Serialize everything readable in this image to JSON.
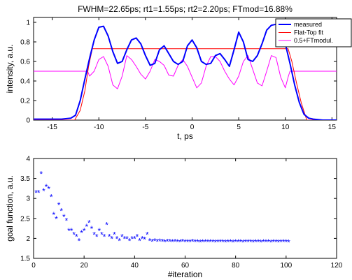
{
  "chart_data": [
    {
      "type": "line",
      "title": "FWHM=22.65ps; rt1=1.55ps; rt2=2.20ps; FTmod=16.88%",
      "xlabel": "t, ps",
      "ylabel": "intensity, a.u.",
      "xlim": [
        -17,
        15.5
      ],
      "ylim": [
        0,
        1.05
      ],
      "xticks": [
        -15,
        -10,
        -5,
        0,
        5,
        10,
        15
      ],
      "yticks": [
        0,
        0.2,
        0.4,
        0.6,
        0.8,
        1
      ],
      "xtick_labels": [
        "-15",
        "-10",
        "-5",
        "0",
        "5",
        "10",
        "15"
      ],
      "ytick_labels": [
        "0",
        "0.2",
        "0.4",
        "0.6",
        "0.8",
        "1"
      ],
      "legend_position": "top-right",
      "grid": false,
      "series": [
        {
          "name": "measured",
          "color": "#0000ff",
          "x": [
            -17,
            -16,
            -15,
            -14,
            -13,
            -12.5,
            -12,
            -11.5,
            -11,
            -10.5,
            -10,
            -9.5,
            -9,
            -8.5,
            -8,
            -7.5,
            -7,
            -6.5,
            -6,
            -5.5,
            -5,
            -4.5,
            -4,
            -3.5,
            -3,
            -2.5,
            -2,
            -1.5,
            -1,
            -0.5,
            0,
            0.5,
            1,
            1.5,
            2,
            2.5,
            3,
            3.5,
            4,
            4.5,
            5,
            5.5,
            6,
            6.5,
            7,
            7.5,
            8,
            8.5,
            9,
            9.5,
            10,
            10.5,
            11,
            11.5,
            12,
            12.5,
            13,
            14,
            15.5
          ],
          "y": [
            0.01,
            0.01,
            0.01,
            0.01,
            0.02,
            0.05,
            0.2,
            0.42,
            0.63,
            0.82,
            0.95,
            0.96,
            0.86,
            0.7,
            0.58,
            0.6,
            0.72,
            0.82,
            0.84,
            0.78,
            0.66,
            0.56,
            0.58,
            0.72,
            0.76,
            0.68,
            0.6,
            0.57,
            0.6,
            0.76,
            0.82,
            0.74,
            0.6,
            0.57,
            0.58,
            0.66,
            0.68,
            0.62,
            0.55,
            0.72,
            0.9,
            0.8,
            0.62,
            0.6,
            0.66,
            0.78,
            0.92,
            0.97,
            0.98,
            0.96,
            0.78,
            0.58,
            0.36,
            0.18,
            0.06,
            0.02,
            0.01,
            0.0,
            0.0
          ]
        },
        {
          "name": "Flat-Top fit",
          "color": "#ff0000",
          "x": [
            -17,
            -12.6,
            -12,
            -11.5,
            -11.1,
            -10.7,
            10.3,
            10.7,
            11.2,
            11.7,
            12.3,
            15.5
          ],
          "y": [
            0,
            0,
            0.1,
            0.3,
            0.55,
            0.73,
            0.73,
            0.6,
            0.38,
            0.18,
            0,
            0
          ]
        },
        {
          "name": "0.5+FTmodul.",
          "color": "#ff00ff",
          "x": [
            -17,
            -11.2,
            -11,
            -10.5,
            -10,
            -9.5,
            -9,
            -8.5,
            -8,
            -7.5,
            -7,
            -6.5,
            -6,
            -5.5,
            -5,
            -4.5,
            -4,
            -3.5,
            -3,
            -2.5,
            -2,
            -1.5,
            -1,
            -0.5,
            0,
            0.5,
            1,
            1.5,
            2,
            2.5,
            3,
            3.5,
            4,
            4.5,
            5,
            5.5,
            6,
            6.5,
            7,
            7.5,
            8,
            8.5,
            9,
            9.5,
            10,
            10.3,
            10.5,
            15.5
          ],
          "y": [
            0.5,
            0.5,
            0.45,
            0.5,
            0.62,
            0.65,
            0.55,
            0.36,
            0.32,
            0.45,
            0.66,
            0.62,
            0.55,
            0.47,
            0.42,
            0.5,
            0.62,
            0.6,
            0.56,
            0.46,
            0.45,
            0.56,
            0.62,
            0.55,
            0.44,
            0.33,
            0.38,
            0.55,
            0.65,
            0.65,
            0.6,
            0.5,
            0.42,
            0.36,
            0.45,
            0.6,
            0.66,
            0.52,
            0.38,
            0.35,
            0.5,
            0.66,
            0.64,
            0.44,
            0.33,
            0.44,
            0.5,
            0.5
          ]
        }
      ]
    },
    {
      "type": "scatter",
      "xlabel": "#iteration",
      "ylabel": "goal function, a.u.",
      "xlim": [
        0,
        120
      ],
      "ylim": [
        1.5,
        4
      ],
      "xticks": [
        0,
        20,
        40,
        60,
        80,
        100,
        120
      ],
      "yticks": [
        1.5,
        2,
        2.5,
        3,
        3.5,
        4
      ],
      "xtick_labels": [
        "0",
        "20",
        "40",
        "60",
        "80",
        "100",
        "120"
      ],
      "ytick_labels": [
        "1.5",
        "2",
        "2.5",
        "3",
        "3.5",
        "4"
      ],
      "marker": "asterisk",
      "grid": false,
      "series": [
        {
          "color": "#0000ff",
          "x": [
            1,
            2,
            3,
            4,
            5,
            6,
            7,
            8,
            9,
            10,
            11,
            12,
            13,
            14,
            15,
            16,
            17,
            18,
            19,
            20,
            21,
            22,
            23,
            24,
            25,
            26,
            27,
            28,
            29,
            30,
            31,
            32,
            33,
            34,
            35,
            36,
            37,
            38,
            39,
            40,
            41,
            42,
            43,
            44,
            45,
            46,
            47,
            48,
            49,
            50,
            51,
            52,
            53,
            54,
            55,
            56,
            57,
            58,
            59,
            60,
            61,
            62,
            63,
            64,
            65,
            66,
            67,
            68,
            69,
            70,
            71,
            72,
            73,
            74,
            75,
            76,
            77,
            78,
            79,
            80,
            81,
            82,
            83,
            84,
            85,
            86,
            87,
            88,
            89,
            90,
            91,
            92,
            93,
            94,
            95,
            96,
            97,
            98,
            99,
            100,
            101
          ],
          "y": [
            3.15,
            3.15,
            3.62,
            3.2,
            3.3,
            3.25,
            3.05,
            2.6,
            2.5,
            2.85,
            2.7,
            2.55,
            2.45,
            2.2,
            2.2,
            2.1,
            2.05,
            1.95,
            2.15,
            2.2,
            2.3,
            2.4,
            2.25,
            2.1,
            2.05,
            2.2,
            2.1,
            2.05,
            2.35,
            2.05,
            2.0,
            2.1,
            2.0,
            1.95,
            2.05,
            2.0,
            2.0,
            1.95,
            2.0,
            2.0,
            2.05,
            1.95,
            2.0,
            1.98,
            2.1,
            1.95,
            1.93,
            1.95,
            1.93,
            1.94,
            1.93,
            1.92,
            1.93,
            1.93,
            1.92,
            1.93,
            1.92,
            1.92,
            1.93,
            1.92,
            1.92,
            1.92,
            1.93,
            1.92,
            1.92,
            1.91,
            1.92,
            1.92,
            1.92,
            1.92,
            1.92,
            1.91,
            1.92,
            1.92,
            1.92,
            1.91,
            1.92,
            1.92,
            1.91,
            1.92,
            1.92,
            1.92,
            1.91,
            1.92,
            1.92,
            1.92,
            1.91,
            1.92,
            1.92,
            1.91,
            1.92,
            1.92,
            1.92,
            1.91,
            1.92,
            1.92,
            1.91,
            1.92,
            1.92,
            1.92,
            1.91
          ]
        }
      ]
    }
  ]
}
